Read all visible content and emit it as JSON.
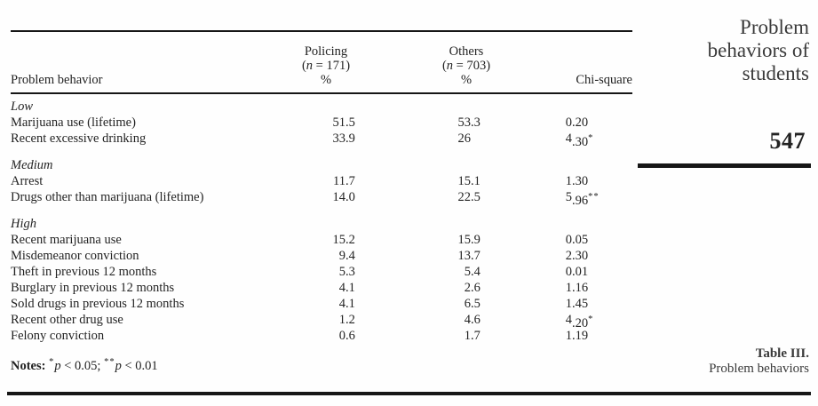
{
  "margin": {
    "journal_title_lines": [
      "Problem",
      "behaviors of",
      "students"
    ],
    "page_number": "547",
    "caption_title": "Table III.",
    "caption_subtitle": "Problem behaviors"
  },
  "table": {
    "headers": {
      "behavior": "Problem behavior",
      "policing_name": "Policing",
      "policing_n": "(n = 171)",
      "policing_pct": "%",
      "others_name": "Others",
      "others_n": "(n = 703)",
      "others_pct": "%",
      "chi": "Chi-square"
    },
    "sections": [
      {
        "label": "Low",
        "rows": [
          {
            "behavior": "Marijuana use (lifetime)",
            "policing": "51.5",
            "others": "53.3",
            "chi": "0.20",
            "sig": ""
          },
          {
            "behavior": "Recent excessive drinking",
            "policing": "33.9",
            "others": "26",
            "chi": "4.30",
            "sig": "*"
          }
        ]
      },
      {
        "label": "Medium",
        "rows": [
          {
            "behavior": "Arrest",
            "policing": "11.7",
            "others": "15.1",
            "chi": "1.30",
            "sig": ""
          },
          {
            "behavior": "Drugs other than marijuana (lifetime)",
            "policing": "14.0",
            "others": "22.5",
            "chi": "5.96",
            "sig": "**"
          }
        ]
      },
      {
        "label": "High",
        "rows": [
          {
            "behavior": "Recent marijuana use",
            "policing": "15.2",
            "others": "15.9",
            "chi": "0.05",
            "sig": ""
          },
          {
            "behavior": "Misdemeanor conviction",
            "policing": "9.4",
            "others": "13.7",
            "chi": "2.30",
            "sig": ""
          },
          {
            "behavior": "Theft in previous 12 months",
            "policing": "5.3",
            "others": "5.4",
            "chi": "0.01",
            "sig": ""
          },
          {
            "behavior": "Burglary in previous 12 months",
            "policing": "4.1",
            "others": "2.6",
            "chi": "1.16",
            "sig": ""
          },
          {
            "behavior": "Sold drugs in previous 12 months",
            "policing": "4.1",
            "others": "6.5",
            "chi": "1.45",
            "sig": ""
          },
          {
            "behavior": "Recent other drug use",
            "policing": "1.2",
            "others": "4.6",
            "chi": "4.20",
            "sig": "*"
          },
          {
            "behavior": "Felony conviction",
            "policing": "0.6",
            "others": "1.7",
            "chi": "1.19",
            "sig": ""
          }
        ]
      }
    ],
    "notes_label": "Notes:",
    "notes": [
      {
        "sig": "*",
        "var": "p",
        "rest": " < 0.05; "
      },
      {
        "sig": "**",
        "var": "p",
        "rest": " < 0.01"
      }
    ]
  },
  "colors": {
    "ink": "#232323",
    "rule": "#161616",
    "title": "#3a3a3a"
  }
}
